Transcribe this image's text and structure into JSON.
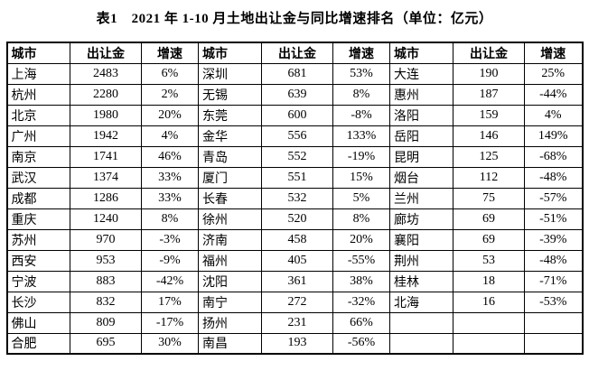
{
  "title": "表1　2021 年 1-10 月土地出让金与同比增速排名（单位：亿元）",
  "table": {
    "headers": [
      "城市",
      "出让金",
      "增速",
      "城市",
      "出让金",
      "增速",
      "城市",
      "出让金",
      "增速"
    ],
    "rows": [
      [
        "上海",
        "2483",
        "6%",
        "深圳",
        "681",
        "53%",
        "大连",
        "190",
        "25%"
      ],
      [
        "杭州",
        "2280",
        "2%",
        "无锡",
        "639",
        "8%",
        "惠州",
        "187",
        "-44%"
      ],
      [
        "北京",
        "1980",
        "20%",
        "东莞",
        "600",
        "-8%",
        "洛阳",
        "159",
        "4%"
      ],
      [
        "广州",
        "1942",
        "4%",
        "金华",
        "556",
        "133%",
        "岳阳",
        "146",
        "149%"
      ],
      [
        "南京",
        "1741",
        "46%",
        "青岛",
        "552",
        "-19%",
        "昆明",
        "125",
        "-68%"
      ],
      [
        "武汉",
        "1374",
        "33%",
        "厦门",
        "551",
        "15%",
        "烟台",
        "112",
        "-48%"
      ],
      [
        "成都",
        "1286",
        "33%",
        "长春",
        "532",
        "5%",
        "兰州",
        "75",
        "-57%"
      ],
      [
        "重庆",
        "1240",
        "8%",
        "徐州",
        "520",
        "8%",
        "廊坊",
        "69",
        "-51%"
      ],
      [
        "苏州",
        "970",
        "-3%",
        "济南",
        "458",
        "20%",
        "襄阳",
        "69",
        "-39%"
      ],
      [
        "西安",
        "953",
        "-9%",
        "福州",
        "405",
        "-55%",
        "荆州",
        "53",
        "-48%"
      ],
      [
        "宁波",
        "883",
        "-42%",
        "沈阳",
        "361",
        "38%",
        "桂林",
        "18",
        "-71%"
      ],
      [
        "长沙",
        "832",
        "17%",
        "南宁",
        "272",
        "-32%",
        "北海",
        "16",
        "-53%"
      ],
      [
        "佛山",
        "809",
        "-17%",
        "扬州",
        "231",
        "66%",
        "",
        "",
        ""
      ],
      [
        "合肥",
        "695",
        "30%",
        "南昌",
        "193",
        "-56%",
        "",
        "",
        ""
      ]
    ]
  }
}
